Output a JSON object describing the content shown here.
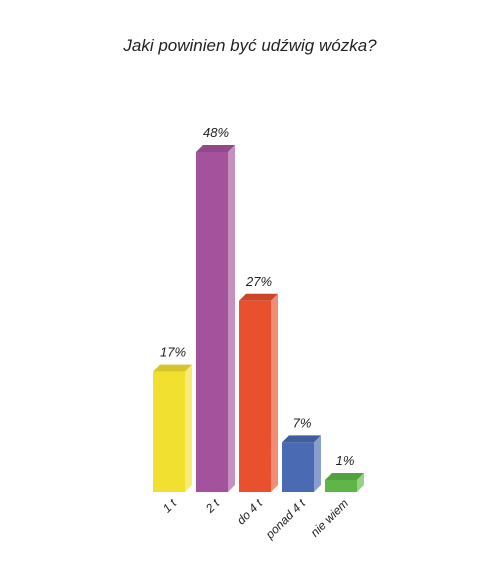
{
  "chart_data": {
    "type": "bar",
    "title": "Jaki powinien być udźwig wózka?",
    "categories": [
      "1 t",
      "2 t",
      "do 4 t",
      "ponad 4 t",
      "nie wiem"
    ],
    "values": [
      17,
      48,
      27,
      7,
      1
    ],
    "value_labels": [
      "17%",
      "48%",
      "27%",
      "7%",
      "1%"
    ],
    "colors": [
      "#f2e030",
      "#a5529c",
      "#e8502e",
      "#4a6ab3",
      "#5fb648"
    ],
    "ylim": [
      0,
      48
    ],
    "grid": false,
    "legend": "none"
  }
}
